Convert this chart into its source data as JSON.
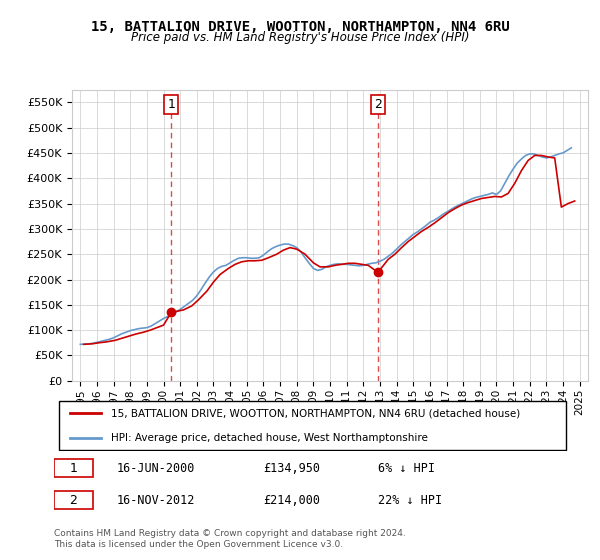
{
  "title": "15, BATTALION DRIVE, WOOTTON, NORTHAMPTON, NN4 6RU",
  "subtitle": "Price paid vs. HM Land Registry's House Price Index (HPI)",
  "legend_line1": "15, BATTALION DRIVE, WOOTTON, NORTHAMPTON, NN4 6RU (detached house)",
  "legend_line2": "HPI: Average price, detached house, West Northamptonshire",
  "annotation1_label": "1",
  "annotation1_date": "16-JUN-2000",
  "annotation1_price": "£134,950",
  "annotation1_hpi": "6% ↓ HPI",
  "annotation2_label": "2",
  "annotation2_date": "16-NOV-2012",
  "annotation2_price": "£214,000",
  "annotation2_hpi": "22% ↓ HPI",
  "footer": "Contains HM Land Registry data © Crown copyright and database right 2024.\nThis data is licensed under the Open Government Licence v3.0.",
  "vline1_x": 2000.46,
  "vline2_x": 2012.88,
  "marker1_x": 2000.46,
  "marker1_y": 134950,
  "marker2_x": 2012.88,
  "marker2_y": 214000,
  "price_color": "#cc0000",
  "hpi_color": "#6699cc",
  "vline_color": "#cc0000",
  "ylim": [
    0,
    575000
  ],
  "xlim_start": 1994.5,
  "xlim_end": 2025.5,
  "hpi_x": [
    1995,
    1995.25,
    1995.5,
    1995.75,
    1996,
    1996.25,
    1996.5,
    1996.75,
    1997,
    1997.25,
    1997.5,
    1997.75,
    1998,
    1998.25,
    1998.5,
    1998.75,
    1999,
    1999.25,
    1999.5,
    1999.75,
    2000,
    2000.25,
    2000.5,
    2000.75,
    2001,
    2001.25,
    2001.5,
    2001.75,
    2002,
    2002.25,
    2002.5,
    2002.75,
    2003,
    2003.25,
    2003.5,
    2003.75,
    2004,
    2004.25,
    2004.5,
    2004.75,
    2005,
    2005.25,
    2005.5,
    2005.75,
    2006,
    2006.25,
    2006.5,
    2006.75,
    2007,
    2007.25,
    2007.5,
    2007.75,
    2008,
    2008.25,
    2008.5,
    2008.75,
    2009,
    2009.25,
    2009.5,
    2009.75,
    2010,
    2010.25,
    2010.5,
    2010.75,
    2011,
    2011.25,
    2011.5,
    2011.75,
    2012,
    2012.25,
    2012.5,
    2012.75,
    2013,
    2013.25,
    2013.5,
    2013.75,
    2014,
    2014.25,
    2014.5,
    2014.75,
    2015,
    2015.25,
    2015.5,
    2015.75,
    2016,
    2016.25,
    2016.5,
    2016.75,
    2017,
    2017.25,
    2017.5,
    2017.75,
    2018,
    2018.25,
    2018.5,
    2018.75,
    2019,
    2019.25,
    2019.5,
    2019.75,
    2020,
    2020.25,
    2020.5,
    2020.75,
    2021,
    2021.25,
    2021.5,
    2021.75,
    2022,
    2022.25,
    2022.5,
    2022.75,
    2023,
    2023.25,
    2023.5,
    2023.75,
    2024,
    2024.25,
    2024.5
  ],
  "hpi_y": [
    72000,
    72500,
    73000,
    74000,
    76000,
    78000,
    80000,
    82000,
    85000,
    89000,
    93000,
    96000,
    99000,
    101000,
    103000,
    104000,
    105000,
    108000,
    113000,
    118000,
    123000,
    127000,
    131000,
    136000,
    141000,
    147000,
    153000,
    159000,
    168000,
    180000,
    193000,
    205000,
    215000,
    222000,
    226000,
    228000,
    233000,
    238000,
    242000,
    243000,
    243000,
    242000,
    242000,
    243000,
    248000,
    255000,
    261000,
    265000,
    268000,
    270000,
    270000,
    267000,
    263000,
    255000,
    243000,
    232000,
    222000,
    218000,
    220000,
    225000,
    228000,
    230000,
    231000,
    230000,
    230000,
    229000,
    228000,
    227000,
    228000,
    230000,
    232000,
    233000,
    236000,
    240000,
    246000,
    252000,
    260000,
    268000,
    275000,
    282000,
    289000,
    294000,
    300000,
    306000,
    313000,
    317000,
    322000,
    328000,
    333000,
    338000,
    343000,
    347000,
    351000,
    355000,
    359000,
    362000,
    364000,
    366000,
    368000,
    371000,
    368000,
    375000,
    390000,
    405000,
    418000,
    430000,
    438000,
    445000,
    448000,
    448000,
    445000,
    442000,
    440000,
    442000,
    445000,
    448000,
    450000,
    455000,
    460000
  ],
  "price_x": [
    1995.2,
    1995.7,
    1996.1,
    1996.6,
    1997.1,
    1997.5,
    1997.9,
    1998.3,
    1998.8,
    1999.2,
    1999.6,
    2000.0,
    2000.46,
    2001.2,
    2001.7,
    2002.1,
    2002.6,
    2003.0,
    2003.4,
    2003.9,
    2004.3,
    2004.7,
    2005.1,
    2005.5,
    2005.9,
    2006.3,
    2006.8,
    2007.2,
    2007.6,
    2008.0,
    2008.5,
    2009.0,
    2009.4,
    2009.9,
    2010.3,
    2010.7,
    2011.1,
    2011.5,
    2011.9,
    2012.3,
    2012.88,
    2013.5,
    2013.9,
    2014.3,
    2014.7,
    2015.1,
    2015.5,
    2015.9,
    2016.3,
    2016.7,
    2017.1,
    2017.5,
    2017.9,
    2018.3,
    2018.7,
    2019.1,
    2019.5,
    2019.9,
    2020.3,
    2020.7,
    2021.1,
    2021.5,
    2021.9,
    2022.3,
    2022.7,
    2023.1,
    2023.5,
    2023.9,
    2024.3,
    2024.7
  ],
  "price_y": [
    72000,
    73000,
    75000,
    77000,
    80000,
    84000,
    88000,
    92000,
    96000,
    100000,
    105000,
    110000,
    134950,
    140000,
    148000,
    160000,
    177000,
    195000,
    210000,
    222000,
    230000,
    235000,
    237000,
    237000,
    238000,
    243000,
    250000,
    258000,
    263000,
    260000,
    250000,
    233000,
    225000,
    225000,
    228000,
    230000,
    232000,
    232000,
    230000,
    228000,
    214000,
    240000,
    250000,
    263000,
    275000,
    285000,
    295000,
    303000,
    312000,
    322000,
    332000,
    340000,
    347000,
    352000,
    356000,
    360000,
    362000,
    364000,
    363000,
    370000,
    390000,
    415000,
    435000,
    445000,
    445000,
    442000,
    440000,
    343000,
    350000,
    355000
  ]
}
